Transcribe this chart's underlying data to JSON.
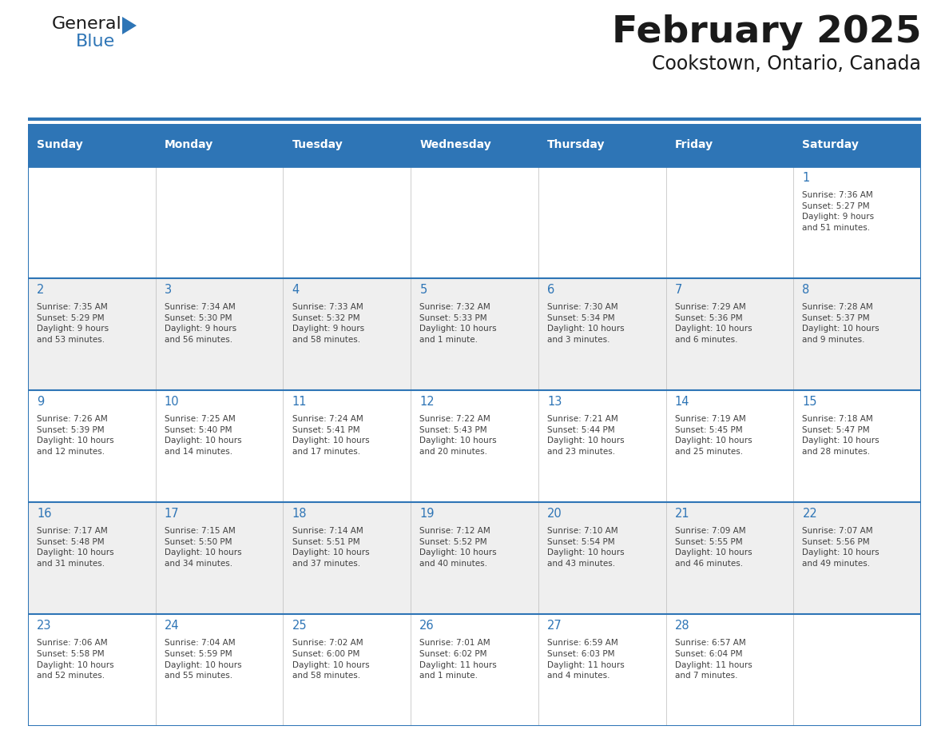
{
  "title": "February 2025",
  "subtitle": "Cookstown, Ontario, Canada",
  "header_bg": "#2E75B6",
  "header_text_color": "#FFFFFF",
  "cell_bg_white": "#FFFFFF",
  "cell_bg_gray": "#EFEFEF",
  "border_color": "#2E75B6",
  "day_number_color": "#2E75B6",
  "text_color": "#404040",
  "days_of_week": [
    "Sunday",
    "Monday",
    "Tuesday",
    "Wednesday",
    "Thursday",
    "Friday",
    "Saturday"
  ],
  "weeks": [
    [
      {
        "day": "",
        "info": ""
      },
      {
        "day": "",
        "info": ""
      },
      {
        "day": "",
        "info": ""
      },
      {
        "day": "",
        "info": ""
      },
      {
        "day": "",
        "info": ""
      },
      {
        "day": "",
        "info": ""
      },
      {
        "day": "1",
        "info": "Sunrise: 7:36 AM\nSunset: 5:27 PM\nDaylight: 9 hours\nand 51 minutes."
      }
    ],
    [
      {
        "day": "2",
        "info": "Sunrise: 7:35 AM\nSunset: 5:29 PM\nDaylight: 9 hours\nand 53 minutes."
      },
      {
        "day": "3",
        "info": "Sunrise: 7:34 AM\nSunset: 5:30 PM\nDaylight: 9 hours\nand 56 minutes."
      },
      {
        "day": "4",
        "info": "Sunrise: 7:33 AM\nSunset: 5:32 PM\nDaylight: 9 hours\nand 58 minutes."
      },
      {
        "day": "5",
        "info": "Sunrise: 7:32 AM\nSunset: 5:33 PM\nDaylight: 10 hours\nand 1 minute."
      },
      {
        "day": "6",
        "info": "Sunrise: 7:30 AM\nSunset: 5:34 PM\nDaylight: 10 hours\nand 3 minutes."
      },
      {
        "day": "7",
        "info": "Sunrise: 7:29 AM\nSunset: 5:36 PM\nDaylight: 10 hours\nand 6 minutes."
      },
      {
        "day": "8",
        "info": "Sunrise: 7:28 AM\nSunset: 5:37 PM\nDaylight: 10 hours\nand 9 minutes."
      }
    ],
    [
      {
        "day": "9",
        "info": "Sunrise: 7:26 AM\nSunset: 5:39 PM\nDaylight: 10 hours\nand 12 minutes."
      },
      {
        "day": "10",
        "info": "Sunrise: 7:25 AM\nSunset: 5:40 PM\nDaylight: 10 hours\nand 14 minutes."
      },
      {
        "day": "11",
        "info": "Sunrise: 7:24 AM\nSunset: 5:41 PM\nDaylight: 10 hours\nand 17 minutes."
      },
      {
        "day": "12",
        "info": "Sunrise: 7:22 AM\nSunset: 5:43 PM\nDaylight: 10 hours\nand 20 minutes."
      },
      {
        "day": "13",
        "info": "Sunrise: 7:21 AM\nSunset: 5:44 PM\nDaylight: 10 hours\nand 23 minutes."
      },
      {
        "day": "14",
        "info": "Sunrise: 7:19 AM\nSunset: 5:45 PM\nDaylight: 10 hours\nand 25 minutes."
      },
      {
        "day": "15",
        "info": "Sunrise: 7:18 AM\nSunset: 5:47 PM\nDaylight: 10 hours\nand 28 minutes."
      }
    ],
    [
      {
        "day": "16",
        "info": "Sunrise: 7:17 AM\nSunset: 5:48 PM\nDaylight: 10 hours\nand 31 minutes."
      },
      {
        "day": "17",
        "info": "Sunrise: 7:15 AM\nSunset: 5:50 PM\nDaylight: 10 hours\nand 34 minutes."
      },
      {
        "day": "18",
        "info": "Sunrise: 7:14 AM\nSunset: 5:51 PM\nDaylight: 10 hours\nand 37 minutes."
      },
      {
        "day": "19",
        "info": "Sunrise: 7:12 AM\nSunset: 5:52 PM\nDaylight: 10 hours\nand 40 minutes."
      },
      {
        "day": "20",
        "info": "Sunrise: 7:10 AM\nSunset: 5:54 PM\nDaylight: 10 hours\nand 43 minutes."
      },
      {
        "day": "21",
        "info": "Sunrise: 7:09 AM\nSunset: 5:55 PM\nDaylight: 10 hours\nand 46 minutes."
      },
      {
        "day": "22",
        "info": "Sunrise: 7:07 AM\nSunset: 5:56 PM\nDaylight: 10 hours\nand 49 minutes."
      }
    ],
    [
      {
        "day": "23",
        "info": "Sunrise: 7:06 AM\nSunset: 5:58 PM\nDaylight: 10 hours\nand 52 minutes."
      },
      {
        "day": "24",
        "info": "Sunrise: 7:04 AM\nSunset: 5:59 PM\nDaylight: 10 hours\nand 55 minutes."
      },
      {
        "day": "25",
        "info": "Sunrise: 7:02 AM\nSunset: 6:00 PM\nDaylight: 10 hours\nand 58 minutes."
      },
      {
        "day": "26",
        "info": "Sunrise: 7:01 AM\nSunset: 6:02 PM\nDaylight: 11 hours\nand 1 minute."
      },
      {
        "day": "27",
        "info": "Sunrise: 6:59 AM\nSunset: 6:03 PM\nDaylight: 11 hours\nand 4 minutes."
      },
      {
        "day": "28",
        "info": "Sunrise: 6:57 AM\nSunset: 6:04 PM\nDaylight: 11 hours\nand 7 minutes."
      },
      {
        "day": "",
        "info": ""
      }
    ]
  ],
  "logo_text1": "General",
  "logo_text2": "Blue",
  "logo_color1": "#1a1a1a",
  "logo_color2": "#2E75B6",
  "logo_triangle_color": "#2E75B6",
  "fig_width": 11.88,
  "fig_height": 9.18,
  "dpi": 100
}
